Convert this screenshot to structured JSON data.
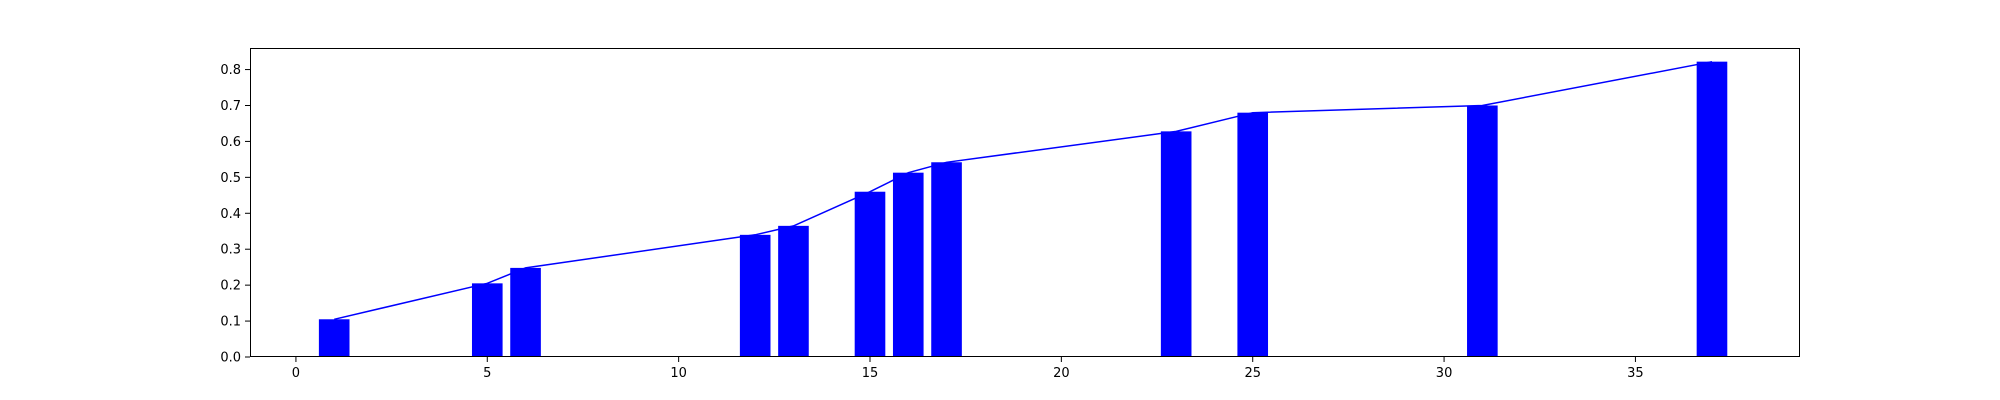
{
  "chart_data": {
    "type": "bar",
    "title": "",
    "xlabel": "",
    "ylabel": "",
    "xlim": [
      -1.2,
      39.3
    ],
    "ylim": [
      0,
      0.86
    ],
    "x_ticks": [
      0,
      5,
      10,
      15,
      20,
      25,
      30,
      35
    ],
    "y_ticks": [
      0.0,
      0.1,
      0.2,
      0.3,
      0.4,
      0.5,
      0.6,
      0.7,
      0.8
    ],
    "bar_width": 0.8,
    "grid": false,
    "x": [
      1,
      5,
      6,
      12,
      13,
      15,
      16,
      17,
      23,
      25,
      31,
      37
    ],
    "series": [
      {
        "type": "bar",
        "color": "#0000ff",
        "values": [
          0.105,
          0.205,
          0.248,
          0.34,
          0.365,
          0.46,
          0.513,
          0.542,
          0.628,
          0.68,
          0.7,
          0.822
        ]
      },
      {
        "type": "line",
        "color": "#0000ff",
        "values": [
          0.105,
          0.205,
          0.248,
          0.34,
          0.365,
          0.46,
          0.513,
          0.542,
          0.628,
          0.68,
          0.7,
          0.822
        ]
      }
    ]
  }
}
